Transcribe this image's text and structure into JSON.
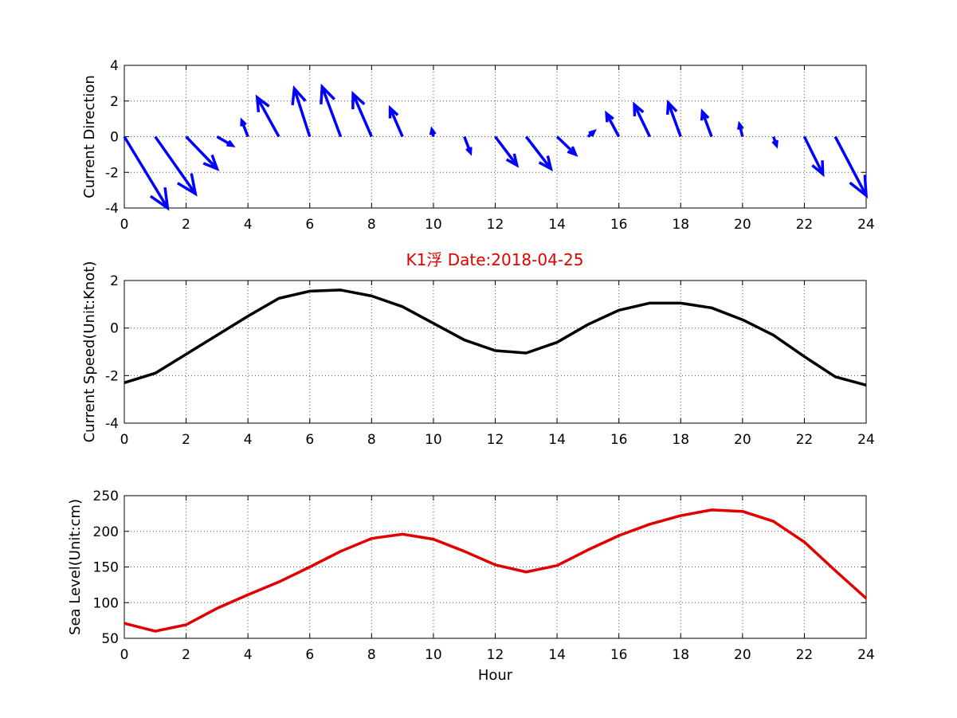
{
  "title": "K1浮    Date:2018-04-25",
  "colors": {
    "title": "#e00000",
    "arrows": "#0000ff",
    "speed": "#000000",
    "level": "#e00000"
  },
  "chart_data": [
    {
      "type": "quiver",
      "ylabel": "Current Direction",
      "xlim": [
        0,
        24
      ],
      "ylim": [
        -4,
        4
      ],
      "x_ticks": [
        0,
        2,
        4,
        6,
        8,
        10,
        12,
        14,
        16,
        18,
        20,
        22,
        24
      ],
      "y_ticks": [
        -4,
        -2,
        0,
        2,
        4
      ],
      "grid": true,
      "arrows": [
        {
          "x": 0,
          "u": 1.4,
          "v": -4.0
        },
        {
          "x": 1,
          "u": 1.3,
          "v": -3.2
        },
        {
          "x": 2,
          "u": 1.0,
          "v": -1.8
        },
        {
          "x": 3,
          "u": 0.5,
          "v": -0.5
        },
        {
          "x": 4,
          "u": -0.2,
          "v": 0.9
        },
        {
          "x": 5,
          "u": -0.7,
          "v": 2.2
        },
        {
          "x": 6,
          "u": -0.5,
          "v": 2.7
        },
        {
          "x": 7,
          "u": -0.6,
          "v": 2.8
        },
        {
          "x": 8,
          "u": -0.6,
          "v": 2.4
        },
        {
          "x": 9,
          "u": -0.4,
          "v": 1.6
        },
        {
          "x": 10,
          "u": -0.05,
          "v": 0.4
        },
        {
          "x": 11,
          "u": 0.2,
          "v": -0.9
        },
        {
          "x": 12,
          "u": 0.7,
          "v": -1.6
        },
        {
          "x": 13,
          "u": 0.8,
          "v": -1.8
        },
        {
          "x": 14,
          "u": 0.6,
          "v": -1.0
        },
        {
          "x": 15,
          "u": 0.2,
          "v": 0.3
        },
        {
          "x": 16,
          "u": -0.4,
          "v": 1.3
        },
        {
          "x": 17,
          "u": -0.5,
          "v": 1.8
        },
        {
          "x": 18,
          "u": -0.4,
          "v": 1.9
        },
        {
          "x": 19,
          "u": -0.3,
          "v": 1.4
        },
        {
          "x": 20,
          "u": -0.1,
          "v": 0.7
        },
        {
          "x": 21,
          "u": 0.1,
          "v": -0.5
        },
        {
          "x": 22,
          "u": 0.6,
          "v": -2.1
        },
        {
          "x": 23,
          "u": 1.0,
          "v": -3.3
        }
      ]
    },
    {
      "type": "line",
      "ylabel": "Current Speed(Unit:Knot)",
      "xlim": [
        0,
        24
      ],
      "ylim": [
        -4,
        2
      ],
      "x_ticks": [
        0,
        2,
        4,
        6,
        8,
        10,
        12,
        14,
        16,
        18,
        20,
        22,
        24
      ],
      "y_ticks": [
        -4,
        -2,
        0,
        2
      ],
      "grid": true,
      "x": [
        0,
        1,
        2,
        3,
        4,
        5,
        6,
        7,
        8,
        9,
        10,
        11,
        12,
        13,
        14,
        15,
        16,
        17,
        18,
        19,
        20,
        21,
        22,
        23,
        24
      ],
      "values": [
        -2.3,
        -1.9,
        -1.1,
        -0.3,
        0.5,
        1.25,
        1.55,
        1.6,
        1.35,
        0.9,
        0.2,
        -0.5,
        -0.95,
        -1.05,
        -0.6,
        0.15,
        0.75,
        1.05,
        1.05,
        0.85,
        0.35,
        -0.3,
        -1.2,
        -2.05,
        -2.4
      ]
    },
    {
      "type": "line",
      "ylabel": "Sea Level(Unit:cm)",
      "xlabel": "Hour",
      "xlim": [
        0,
        24
      ],
      "ylim": [
        50,
        250
      ],
      "x_ticks": [
        0,
        2,
        4,
        6,
        8,
        10,
        12,
        14,
        16,
        18,
        20,
        22,
        24
      ],
      "y_ticks": [
        50,
        100,
        150,
        200,
        250
      ],
      "grid": true,
      "x": [
        0,
        1,
        2,
        3,
        4,
        5,
        6,
        7,
        8,
        9,
        10,
        11,
        12,
        13,
        14,
        15,
        16,
        17,
        18,
        19,
        20,
        21,
        22,
        23,
        24
      ],
      "values": [
        71,
        60,
        69,
        92,
        111,
        129,
        150,
        172,
        190,
        196,
        189,
        172,
        153,
        143,
        152,
        174,
        194,
        210,
        222,
        230,
        228,
        214,
        185,
        145,
        106
      ]
    }
  ]
}
